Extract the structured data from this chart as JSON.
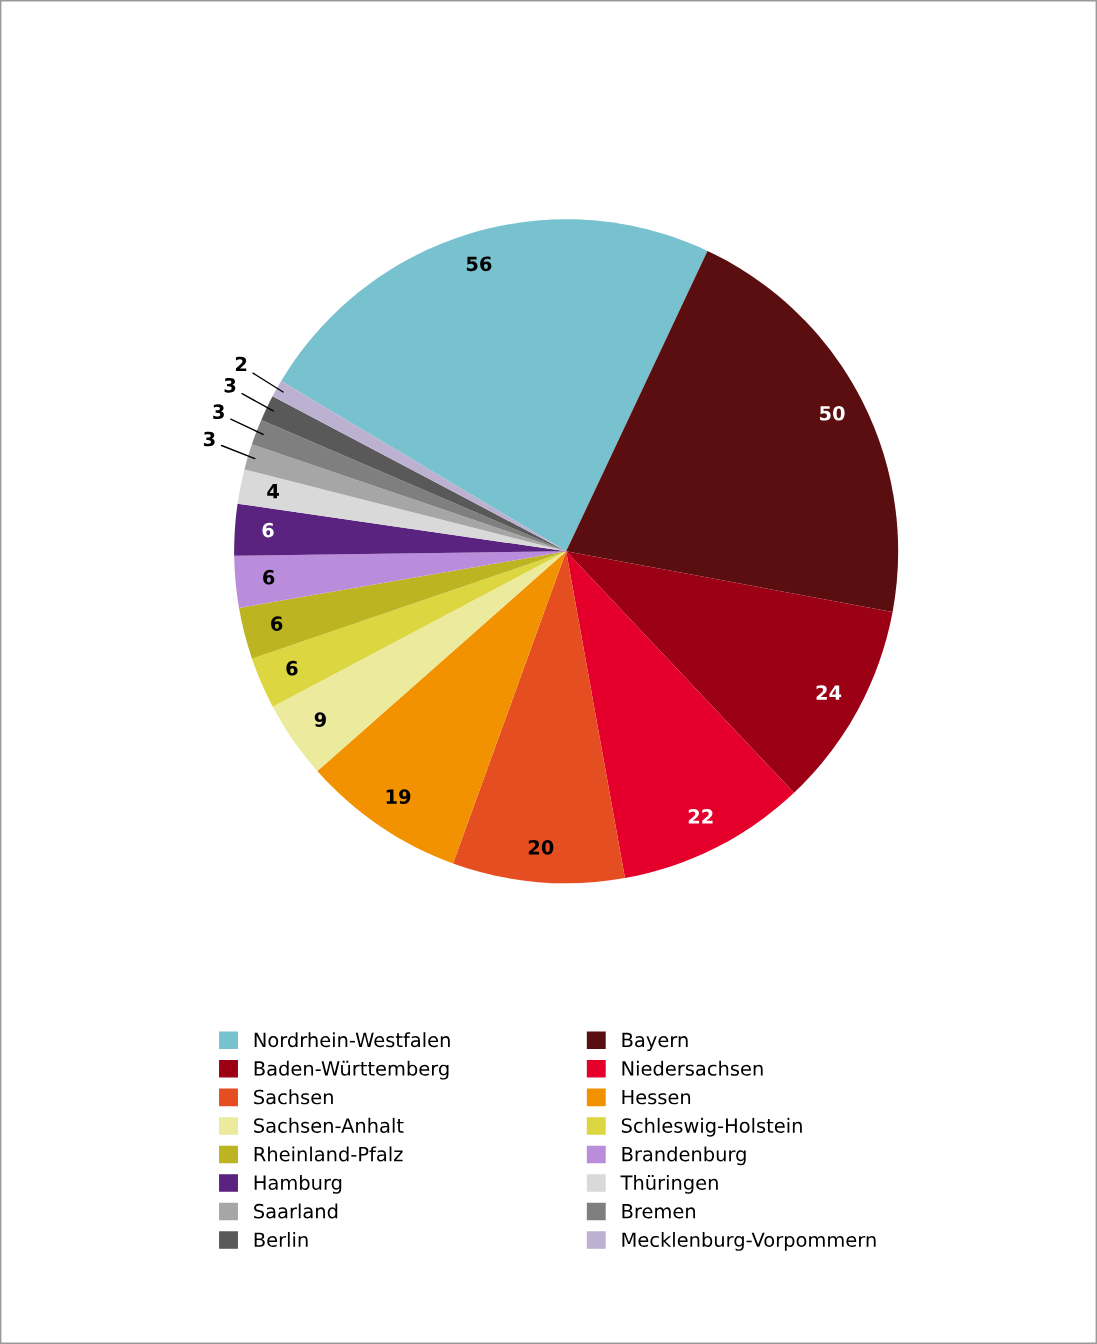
{
  "chart_data": {
    "type": "pie",
    "categories": [
      "Nordrhein-Westfalen",
      "Bayern",
      "Baden-Württemberg",
      "Niedersachsen",
      "Sachsen",
      "Hessen",
      "Sachsen-Anhalt",
      "Schleswig-Holstein",
      "Rheinland-Pfalz",
      "Brandenburg",
      "Hamburg",
      "Thüringen",
      "Saarland",
      "Bremen",
      "Berlin",
      "Mecklenburg-Vorpommern"
    ],
    "values": [
      56,
      50,
      24,
      22,
      20,
      19,
      9,
      6,
      6,
      6,
      6,
      4,
      3,
      3,
      3,
      2
    ],
    "colors": [
      "#78c2d0",
      "#5a0e0f",
      "#9b0015",
      "#e4002b",
      "#e54e21",
      "#f39200",
      "#ecea9c",
      "#dcd640",
      "#bcb521",
      "#b98ddb",
      "#5a237f",
      "#d9d9d9",
      "#a6a6a6",
      "#7f7f7f",
      "#595959",
      "#bcb1d0"
    ],
    "data_labels": true,
    "legend": "bottom"
  }
}
